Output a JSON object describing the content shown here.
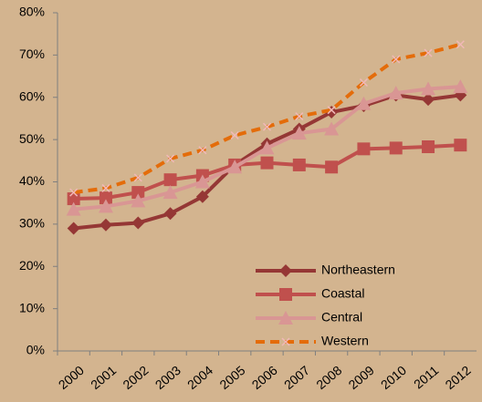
{
  "chart_data": {
    "type": "line",
    "categories": [
      "2000",
      "2001",
      "2002",
      "2003",
      "2004",
      "2005",
      "2006",
      "2007",
      "2008",
      "2009",
      "2010",
      "2011",
      "2012"
    ],
    "series": [
      {
        "name": "Northeastern",
        "color": "#953735",
        "marker": "diamond",
        "dash": false,
        "values": [
          29,
          29.8,
          30.3,
          32.5,
          36.5,
          44,
          49,
          52.5,
          56.5,
          58,
          60.5,
          59.5,
          60.5
        ]
      },
      {
        "name": "Coastal",
        "color": "#c0504d",
        "marker": "square",
        "dash": false,
        "values": [
          36,
          36.2,
          37.5,
          40.5,
          41.5,
          44,
          44.5,
          44,
          43.5,
          47.8,
          48,
          48.3,
          48.7
        ]
      },
      {
        "name": "Central",
        "color": "#d99694",
        "marker": "triangle",
        "dash": false,
        "values": [
          33.5,
          34.2,
          35.5,
          37.5,
          40,
          43.5,
          48,
          51.5,
          52.5,
          58.5,
          61,
          62,
          62.5
        ]
      },
      {
        "name": "Western",
        "color": "#e46c0a",
        "marker": "x",
        "dash": true,
        "values": [
          37.5,
          38.5,
          41,
          45.5,
          47.5,
          51,
          53,
          55.5,
          57,
          63.5,
          69,
          70.5,
          72.5
        ]
      }
    ],
    "ylim": [
      0,
      80
    ],
    "yticks": [
      {
        "value": 0,
        "label": "0%"
      },
      {
        "value": 10,
        "label": "10%"
      },
      {
        "value": 20,
        "label": "20%"
      },
      {
        "value": 30,
        "label": "30%"
      },
      {
        "value": 40,
        "label": "40%"
      },
      {
        "value": 50,
        "label": "50%"
      },
      {
        "value": 60,
        "label": "60%"
      },
      {
        "value": 70,
        "label": "70%"
      },
      {
        "value": 80,
        "label": "80%"
      }
    ],
    "grid": false,
    "legend": "lower right"
  }
}
